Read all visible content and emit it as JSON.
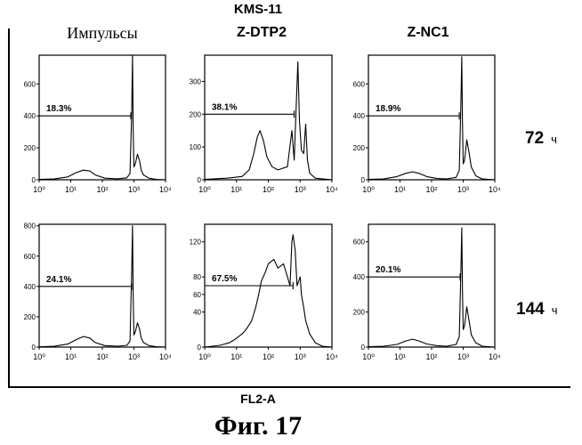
{
  "figure": {
    "title": "KMS-11",
    "x_caption": "FL2-A",
    "caption": "Фиг.  17",
    "column_titles": [
      "Импульсы",
      "Z-DTP2",
      "Z-NC1"
    ],
    "row_labels": [
      {
        "value": "72",
        "unit": "ч"
      },
      {
        "value": "144",
        "unit": "ч"
      }
    ],
    "x_tick_labels": [
      "10⁰",
      "10¹",
      "10²",
      "10³",
      "10⁴"
    ]
  },
  "chart_data": [
    {
      "type": "area",
      "panel": "72h-Импульсы",
      "xscale": "log",
      "xlim": [
        1,
        10000
      ],
      "ylim": [
        0,
        780
      ],
      "yticks": [
        0,
        200,
        400,
        600
      ],
      "x": [
        1,
        3,
        8,
        15,
        25,
        40,
        60,
        120,
        300,
        600,
        750,
        850,
        900,
        950,
        1000,
        1100,
        1300,
        1500,
        1700,
        2000,
        3000,
        5000,
        10000
      ],
      "y": [
        2,
        5,
        18,
        45,
        60,
        55,
        30,
        10,
        6,
        12,
        40,
        420,
        780,
        300,
        80,
        100,
        160,
        120,
        60,
        30,
        10,
        3,
        0
      ],
      "gate": {
        "label": "18.3%",
        "level": 400,
        "x_start": 1,
        "x_end": 800
      }
    },
    {
      "type": "area",
      "panel": "72h-Z-DTP2",
      "xscale": "log",
      "xlim": [
        1,
        10000
      ],
      "ylim": [
        0,
        380
      ],
      "yticks": [
        0,
        100,
        200,
        300
      ],
      "x": [
        1,
        5,
        15,
        25,
        35,
        45,
        55,
        70,
        90,
        130,
        200,
        400,
        550,
        650,
        750,
        850,
        950,
        1100,
        1300,
        1500,
        1700,
        2000,
        3000,
        10000
      ],
      "y": [
        1,
        5,
        10,
        30,
        80,
        130,
        150,
        120,
        70,
        40,
        30,
        40,
        150,
        60,
        220,
        360,
        180,
        90,
        80,
        170,
        60,
        20,
        5,
        0
      ],
      "gate": {
        "label": "38.1%",
        "level": 200,
        "x_start": 1,
        "x_end": 650
      }
    },
    {
      "type": "area",
      "panel": "72h-Z-NC1",
      "xscale": "log",
      "xlim": [
        1,
        10000
      ],
      "ylim": [
        0,
        780
      ],
      "yticks": [
        0,
        200,
        400,
        600
      ],
      "x": [
        1,
        3,
        8,
        15,
        25,
        40,
        70,
        150,
        300,
        600,
        750,
        850,
        900,
        950,
        1000,
        1100,
        1300,
        1500,
        1800,
        2500,
        4000,
        10000
      ],
      "y": [
        2,
        5,
        20,
        40,
        50,
        40,
        20,
        8,
        5,
        15,
        60,
        500,
        770,
        350,
        100,
        120,
        250,
        180,
        80,
        25,
        5,
        0
      ],
      "gate": {
        "label": "18.9%",
        "level": 400,
        "x_start": 1,
        "x_end": 750
      }
    },
    {
      "type": "area",
      "panel": "144h-Импульсы",
      "xscale": "log",
      "xlim": [
        1,
        10000
      ],
      "ylim": [
        0,
        810
      ],
      "yticks": [
        0,
        200,
        400,
        600,
        800
      ],
      "x": [
        1,
        3,
        8,
        15,
        25,
        40,
        60,
        120,
        300,
        600,
        750,
        850,
        900,
        950,
        1000,
        1100,
        1300,
        1500,
        1700,
        2000,
        3000,
        5000,
        10000
      ],
      "y": [
        2,
        5,
        20,
        50,
        70,
        60,
        30,
        10,
        6,
        12,
        40,
        500,
        800,
        330,
        80,
        100,
        160,
        120,
        60,
        30,
        10,
        3,
        0
      ],
      "gate": {
        "label": "24.1%",
        "level": 400,
        "x_start": 1,
        "x_end": 850
      }
    },
    {
      "type": "area",
      "panel": "144h-Z-DTP2",
      "xscale": "log",
      "xlim": [
        1,
        10000
      ],
      "ylim": [
        0,
        140
      ],
      "yticks": [
        0,
        40,
        60,
        80,
        120
      ],
      "x": [
        1,
        3,
        6,
        10,
        15,
        20,
        30,
        40,
        50,
        60,
        80,
        100,
        150,
        200,
        300,
        400,
        480,
        550,
        600,
        700,
        800,
        900,
        1000,
        1100,
        1300,
        1500,
        2000,
        3000,
        5000,
        10000
      ],
      "y": [
        0,
        2,
        5,
        10,
        15,
        20,
        30,
        45,
        60,
        75,
        85,
        95,
        100,
        90,
        95,
        80,
        70,
        120,
        128,
        110,
        70,
        75,
        80,
        60,
        45,
        30,
        15,
        5,
        1,
        0
      ],
      "gate": {
        "label": "67.5%",
        "level": 70,
        "x_start": 1,
        "x_end": 600
      }
    },
    {
      "type": "area",
      "panel": "144h-Z-NC1",
      "xscale": "log",
      "xlim": [
        1,
        10000
      ],
      "ylim": [
        0,
        700
      ],
      "yticks": [
        0,
        200,
        400,
        600
      ],
      "x": [
        1,
        3,
        8,
        15,
        25,
        40,
        70,
        150,
        300,
        600,
        750,
        850,
        900,
        950,
        1000,
        1100,
        1300,
        1500,
        1800,
        2500,
        4000,
        10000
      ],
      "y": [
        2,
        5,
        15,
        35,
        45,
        35,
        18,
        8,
        5,
        15,
        60,
        450,
        680,
        320,
        100,
        120,
        230,
        160,
        70,
        25,
        5,
        0
      ],
      "gate": {
        "label": "20.1%",
        "level": 400,
        "x_start": 1,
        "x_end": 800
      }
    }
  ]
}
